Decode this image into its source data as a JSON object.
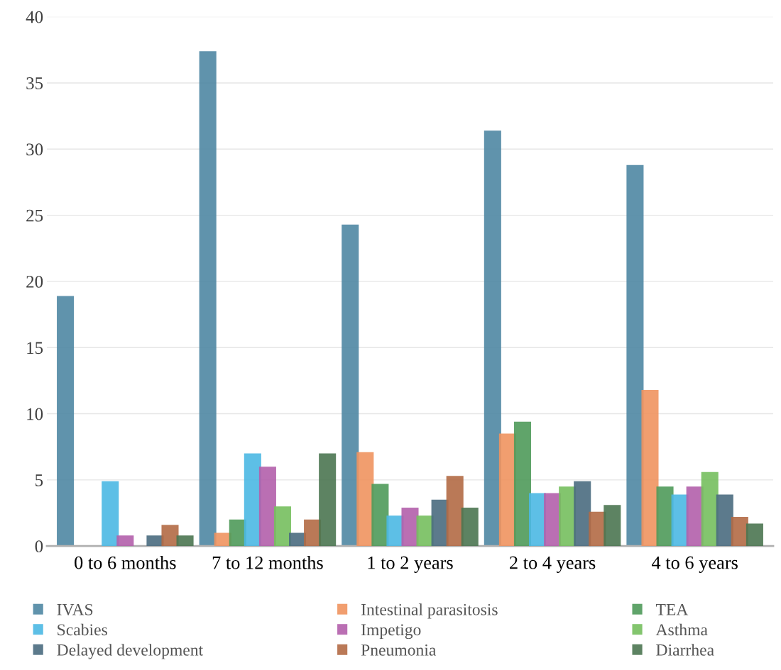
{
  "chart_data": {
    "type": "bar",
    "categories": [
      "0 to 6 months",
      "7 to 12 months",
      "1 to 2 years",
      "2 to 4 years",
      "4 to 6 years"
    ],
    "series": [
      {
        "name": "IVAS",
        "color": "#4f87a3",
        "values": [
          18.9,
          37.4,
          24.3,
          31.4,
          28.8
        ]
      },
      {
        "name": "Intestinal parasitosis",
        "color": "#f0935f",
        "values": [
          0,
          1.0,
          7.1,
          8.5,
          11.8
        ]
      },
      {
        "name": "TEA",
        "color": "#4f9a5a",
        "values": [
          0,
          2.0,
          4.7,
          9.4,
          4.5
        ]
      },
      {
        "name": "Scabies",
        "color": "#4bb8e3",
        "values": [
          4.9,
          7.0,
          2.3,
          4.0,
          3.9
        ]
      },
      {
        "name": "Impetigo",
        "color": "#b25fab",
        "values": [
          0.8,
          6.0,
          2.9,
          4.0,
          4.5
        ]
      },
      {
        "name": "Asthma",
        "color": "#76bf5e",
        "values": [
          0,
          3.0,
          2.3,
          4.5,
          5.6
        ]
      },
      {
        "name": "Delayed development",
        "color": "#4a6b80",
        "values": [
          0.8,
          1.0,
          3.5,
          4.9,
          3.9
        ]
      },
      {
        "name": "Pneumonia",
        "color": "#b36a45",
        "values": [
          1.6,
          2.0,
          5.3,
          2.6,
          2.2
        ]
      },
      {
        "name": "Diarrhea",
        "color": "#4b7651",
        "values": [
          0.8,
          7.0,
          2.9,
          3.1,
          1.7
        ]
      }
    ],
    "ylim": [
      0,
      40
    ],
    "yticks": [
      0,
      5,
      10,
      15,
      20,
      25,
      30,
      35,
      40
    ],
    "grid": "y",
    "legend": "bottom"
  }
}
